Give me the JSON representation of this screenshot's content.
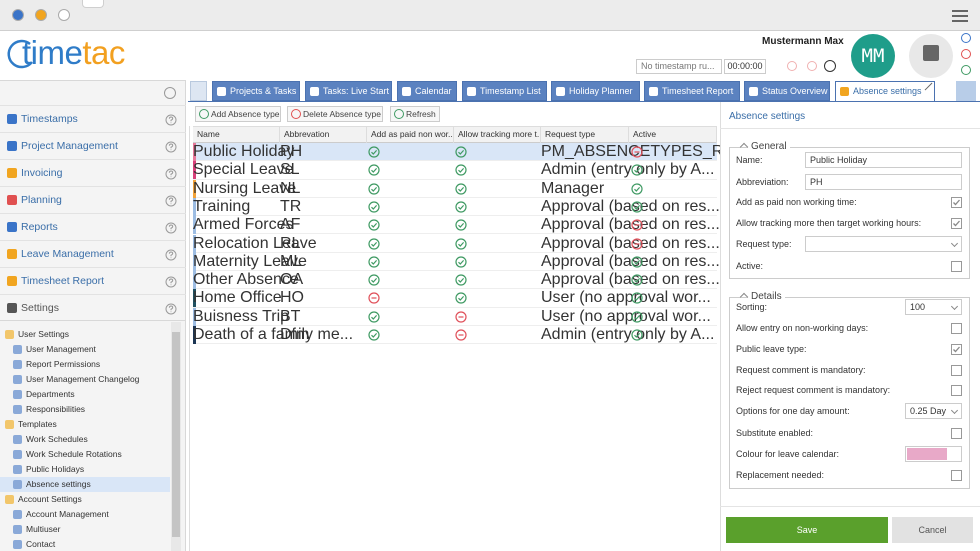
{
  "header": {
    "logo": [
      "time",
      "tac"
    ],
    "user_name": "Mustermann Max",
    "avatar": "MM",
    "timestamp_field": "No timestamp ru...",
    "timer": "00:00:00"
  },
  "sidebar": {
    "menu": [
      "Timestamps",
      "Project Management",
      "Invoicing",
      "Planning",
      "Reports",
      "Leave Management",
      "Timesheet Report",
      "Settings"
    ],
    "tree": [
      {
        "label": "User Settings",
        "level": 0
      },
      {
        "label": "User Management",
        "level": 1
      },
      {
        "label": "Report Permissions",
        "level": 1
      },
      {
        "label": "User Management Changelog",
        "level": 1
      },
      {
        "label": "Departments",
        "level": 1
      },
      {
        "label": "Responsibilities",
        "level": 1
      },
      {
        "label": "Templates",
        "level": 0
      },
      {
        "label": "Work Schedules",
        "level": 1
      },
      {
        "label": "Work Schedule Rotations",
        "level": 1
      },
      {
        "label": "Public Holidays",
        "level": 1
      },
      {
        "label": "Absence settings",
        "level": 1,
        "selected": true
      },
      {
        "label": "Account Settings",
        "level": 0
      },
      {
        "label": "Account Management",
        "level": 1
      },
      {
        "label": "Multiuser",
        "level": 1
      },
      {
        "label": "Contact",
        "level": 1
      }
    ]
  },
  "tabs": {
    "items": [
      "Projects & Tasks",
      "Tasks: Live Start",
      "Calendar",
      "Timestamp List",
      "Holiday Planner",
      "Timesheet Report",
      "Status Overview",
      "Absence settings"
    ],
    "active": 7
  },
  "toolbar": {
    "add": "Add Absence type",
    "delete": "Delete Absence type",
    "refresh": "Refresh"
  },
  "table": {
    "columns": [
      "Name",
      "Abbrevation",
      "Add as paid non wor...",
      "Allow tracking more t...",
      "Request type",
      "Active"
    ],
    "selected_row": 0,
    "rows": [
      {
        "name": "Public Holiday",
        "abbreviation": "PH",
        "paid": true,
        "tracking": true,
        "request_type": "PM_ABSENCETYPES_RE...",
        "active": false,
        "color": "#e8779a"
      },
      {
        "name": "Special Leave",
        "abbreviation": "SL",
        "paid": true,
        "tracking": true,
        "request_type": "Admin (entry only by A...",
        "active": true,
        "color": "#d8407a"
      },
      {
        "name": "Nursing Leave",
        "abbreviation": "NL",
        "paid": true,
        "tracking": true,
        "request_type": "Manager",
        "active": true,
        "color": "#f2a33a"
      },
      {
        "name": "Training",
        "abbreviation": "TR",
        "paid": true,
        "tracking": true,
        "request_type": "Approval (based on res...",
        "active": true,
        "color": "#9dbde3"
      },
      {
        "name": "Armed Forces",
        "abbreviation": "AF",
        "paid": true,
        "tracking": true,
        "request_type": "Approval (based on res...",
        "active": false,
        "color": "#9dbde3"
      },
      {
        "name": "Relocation Leave",
        "abbreviation": "RL",
        "paid": true,
        "tracking": true,
        "request_type": "Approval (based on res...",
        "active": false,
        "color": "#9dbde3"
      },
      {
        "name": "Maternity Leave",
        "abbreviation": "ML",
        "paid": true,
        "tracking": true,
        "request_type": "Approval (based on res...",
        "active": true,
        "color": "#9dbde3"
      },
      {
        "name": "Other Absence",
        "abbreviation": "OA",
        "paid": true,
        "tracking": true,
        "request_type": "Approval (based on res...",
        "active": true,
        "color": "#9dbde3"
      },
      {
        "name": "Home Office",
        "abbreviation": "HO",
        "paid": false,
        "tracking": true,
        "request_type": "User (no approval wor...",
        "active": true,
        "color": "#1f5060"
      },
      {
        "name": "Buisness Trip",
        "abbreviation": "BT",
        "paid": true,
        "tracking": false,
        "request_type": "User (no approval wor...",
        "active": true,
        "color": "#9dbde3"
      },
      {
        "name": "Death of a family me...",
        "abbreviation": "Dfm",
        "paid": true,
        "tracking": false,
        "request_type": "Admin (entry only by A...",
        "active": true,
        "color": "#1c3554"
      }
    ]
  },
  "panel": {
    "title": "Absence settings",
    "general": {
      "legend": "General",
      "fields": [
        {
          "label": "Name:",
          "type": "text",
          "value": "Public Holiday"
        },
        {
          "label": "Abbreviation:",
          "type": "text",
          "value": "PH"
        },
        {
          "label": "Add as paid non working time:",
          "type": "checkbox",
          "checked": true
        },
        {
          "label": "Allow tracking more then target working hours:",
          "type": "checkbox",
          "checked": true
        },
        {
          "label": "Request type:",
          "type": "select"
        },
        {
          "label": "Active:",
          "type": "checkbox",
          "checked": false
        }
      ]
    },
    "details": {
      "legend": "Details",
      "fields": [
        {
          "label": "Sorting:",
          "type": "number",
          "value": "100"
        },
        {
          "label": "Allow entry on non-working days:",
          "type": "checkbox",
          "checked": false
        },
        {
          "label": "Public leave type:",
          "type": "checkbox",
          "checked": true
        },
        {
          "label": "Request comment is mandatory:",
          "type": "checkbox",
          "checked": false
        },
        {
          "label": "Reject request comment is mandatory:",
          "type": "checkbox",
          "checked": false
        },
        {
          "label": "Options for one day amount:",
          "type": "select",
          "value": "0.25 Day"
        },
        {
          "label": "Substitute enabled:",
          "type": "checkbox",
          "checked": false
        },
        {
          "label": "Colour for leave calendar:",
          "type": "color",
          "color": "#e8a9c8"
        },
        {
          "label": "Replacement needed:",
          "type": "checkbox",
          "checked": false
        }
      ]
    },
    "save": "Save",
    "cancel": "Cancel"
  }
}
